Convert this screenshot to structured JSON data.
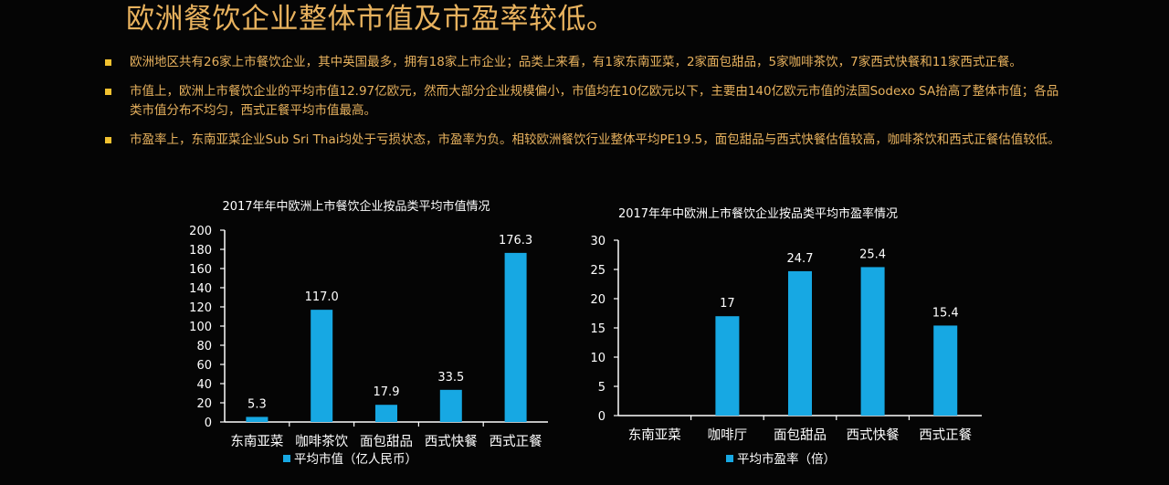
{
  "slide": {
    "title": "欧洲餐饮企业整体市值及市盈率较低。",
    "bullets": [
      "欧洲地区共有26家上市餐饮企业，其中英国最多，拥有18家上市企业；品类上来看，有1家东南亚菜，2家面包甜品，5家咖啡茶饮，7家西式快餐和11家西式正餐。",
      "市值上，欧洲上市餐饮企业的平均市值12.97亿欧元，然而大部分企业规模偏小，市值均在10亿欧元以下，主要由140亿欧元市值的法国Sodexo SA抬高了整体市值；各品类市值分布不均匀，西式正餐平均市值最高。",
      "市盈率上，东南亚菜企业Sub Sri Thai均处于亏损状态，市盈率为负。相较欧洲餐饮行业整体平均PE19.5，面包甜品与西式快餐估值较高，咖啡茶饮和西式正餐估值较低。"
    ],
    "colors": {
      "title": "#e8b25e",
      "bullet_text": "#e8b25e",
      "bullet_marker": "#f2c230",
      "bar": "#17a8e3",
      "axis": "#ffffff",
      "background": "#050505"
    }
  },
  "chart_data": [
    {
      "type": "bar",
      "title": "2017年年中欧洲上市餐饮企业按品类平均市值情况",
      "categories": [
        "东南亚菜",
        "咖啡茶饮",
        "面包甜品",
        "西式快餐",
        "西式正餐"
      ],
      "series": [
        {
          "name": "平均市值（亿人民币）",
          "values": [
            5.3,
            117.0,
            17.9,
            33.5,
            176.3
          ]
        }
      ],
      "data_labels": [
        "5.3",
        "117.0",
        "17.9",
        "33.5",
        "176.3"
      ],
      "yticks": [
        "0",
        "20",
        "40",
        "60",
        "80",
        "100",
        "120",
        "140",
        "160",
        "180",
        "200"
      ],
      "ylim": [
        0,
        200
      ],
      "legend": "bottom",
      "grid": false
    },
    {
      "type": "bar",
      "title": "2017年年中欧洲上市餐饮企业按品类平均市盈率情况",
      "categories": [
        "东南亚菜",
        "咖啡厅",
        "面包甜品",
        "西式快餐",
        "西式正餐"
      ],
      "series": [
        {
          "name": "平均市盈率（倍）",
          "values": [
            null,
            17,
            24.7,
            25.4,
            15.4
          ]
        }
      ],
      "data_labels": [
        "",
        "17",
        "24.7",
        "25.4",
        "15.4"
      ],
      "yticks": [
        "0",
        "5",
        "10",
        "15",
        "20",
        "25",
        "30"
      ],
      "ylim": [
        0,
        30
      ],
      "legend": "bottom",
      "grid": false
    }
  ]
}
